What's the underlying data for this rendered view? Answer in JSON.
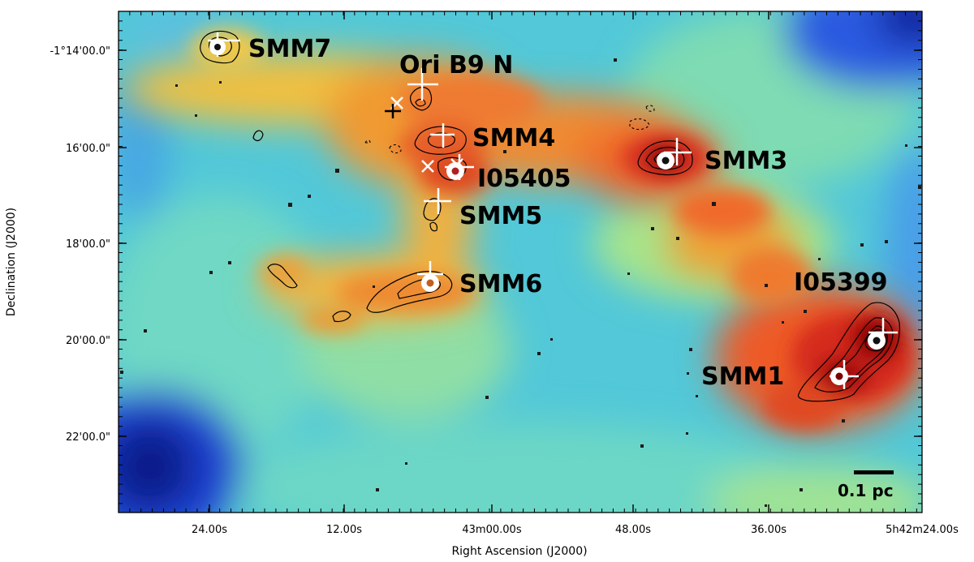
{
  "axes": {
    "xlabel": "Right Ascension (J2000)",
    "ylabel": "Declination (J2000)",
    "x_ticks": [
      "24.00s",
      "12.00s",
      "43m00.00s",
      "48.00s",
      "36.00s",
      "5h42m24.00s"
    ],
    "y_ticks": [
      "-1°14'00.0\"",
      "16'00.0\"",
      "18'00.0\"",
      "20'00.0\"",
      "22'00.0\""
    ]
  },
  "sources": [
    {
      "name": "SMM7"
    },
    {
      "name": "Ori B9 N"
    },
    {
      "name": "SMM4"
    },
    {
      "name": "I05405"
    },
    {
      "name": "SMM3"
    },
    {
      "name": "SMM5"
    },
    {
      "name": "SMM6"
    },
    {
      "name": "I05399"
    },
    {
      "name": "SMM1"
    }
  ],
  "scale_bar": {
    "label": "0.1 pc"
  },
  "colormap": {
    "low": "#0a1fa0",
    "mid": "#49d4d4",
    "high": "#d40f0f",
    "peak": "#6a0000"
  }
}
